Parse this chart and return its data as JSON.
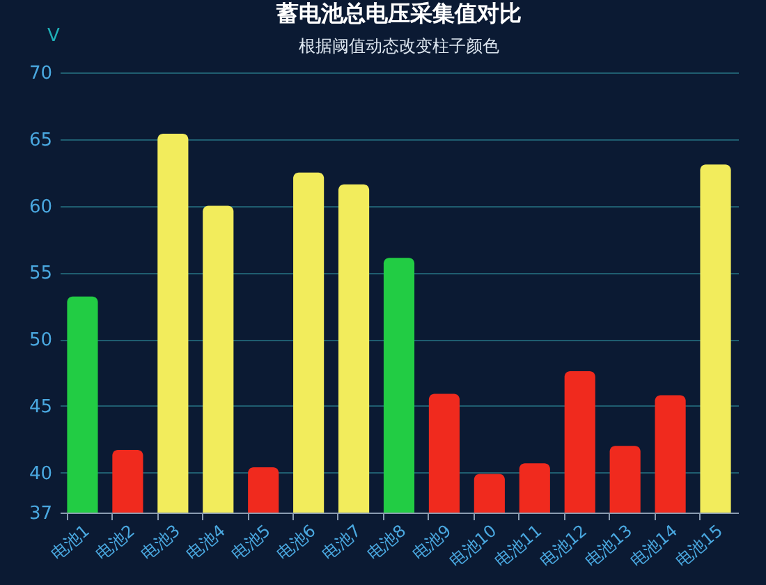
{
  "chart_data": {
    "type": "bar",
    "title": "蓄电池总电压采集值对比",
    "subtitle": "根据阈值动态改变柱子颜色",
    "ylabel": "V",
    "categories": [
      "电池1",
      "电池2",
      "电池3",
      "电池4",
      "电池5",
      "电池6",
      "电池7",
      "电池8",
      "电池9",
      "电池10",
      "电池11",
      "电池12",
      "电池13",
      "电池14",
      "电池15"
    ],
    "values": [
      53.2,
      41.7,
      65.4,
      60.0,
      40.4,
      62.5,
      61.6,
      56.1,
      45.9,
      39.9,
      40.7,
      47.6,
      42.0,
      45.8,
      63.1
    ],
    "colors": [
      "#22cc44",
      "#f02a1e",
      "#f2ec5c",
      "#f2ec5c",
      "#f02a1e",
      "#f2ec5c",
      "#f2ec5c",
      "#22cc44",
      "#f02a1e",
      "#f02a1e",
      "#f02a1e",
      "#f02a1e",
      "#f02a1e",
      "#f02a1e",
      "#f2ec5c"
    ],
    "ylim": [
      37,
      70
    ],
    "yticks": [
      37,
      40,
      45,
      50,
      55,
      60,
      65,
      70
    ],
    "grid": "y"
  }
}
